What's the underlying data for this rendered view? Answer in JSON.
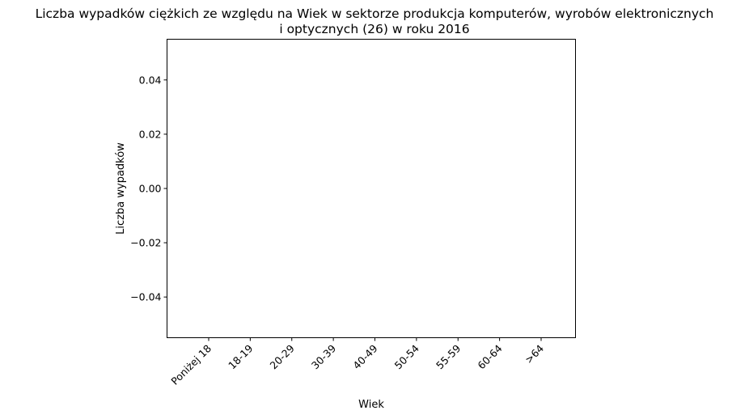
{
  "chart_data": {
    "type": "bar",
    "title_lines": [
      "Liczba wypadków ciężkich ze względu na Wiek w sektorze produkcja komputerów, wyrobów elektronicznych",
      "i optycznych (26)  w roku 2016"
    ],
    "xlabel": "Wiek",
    "ylabel": "Liczba wypadków",
    "categories": [
      "Poniżej 18",
      "18-19",
      "20-29",
      "30-39",
      "40-49",
      "50-54",
      "55-59",
      "60-64",
      ">64"
    ],
    "values": [
      0,
      0,
      0,
      0,
      0,
      0,
      0,
      0,
      0
    ],
    "ylim": [
      -0.055,
      0.055
    ],
    "yticks": [
      -0.04,
      -0.02,
      0.0,
      0.02,
      0.04
    ],
    "ytick_labels": [
      "−0.04",
      "−0.02",
      "0.00",
      "0.02",
      "0.04"
    ],
    "grid": false,
    "colors": {
      "bar": "#1f77b4",
      "axes": "#000000"
    }
  }
}
